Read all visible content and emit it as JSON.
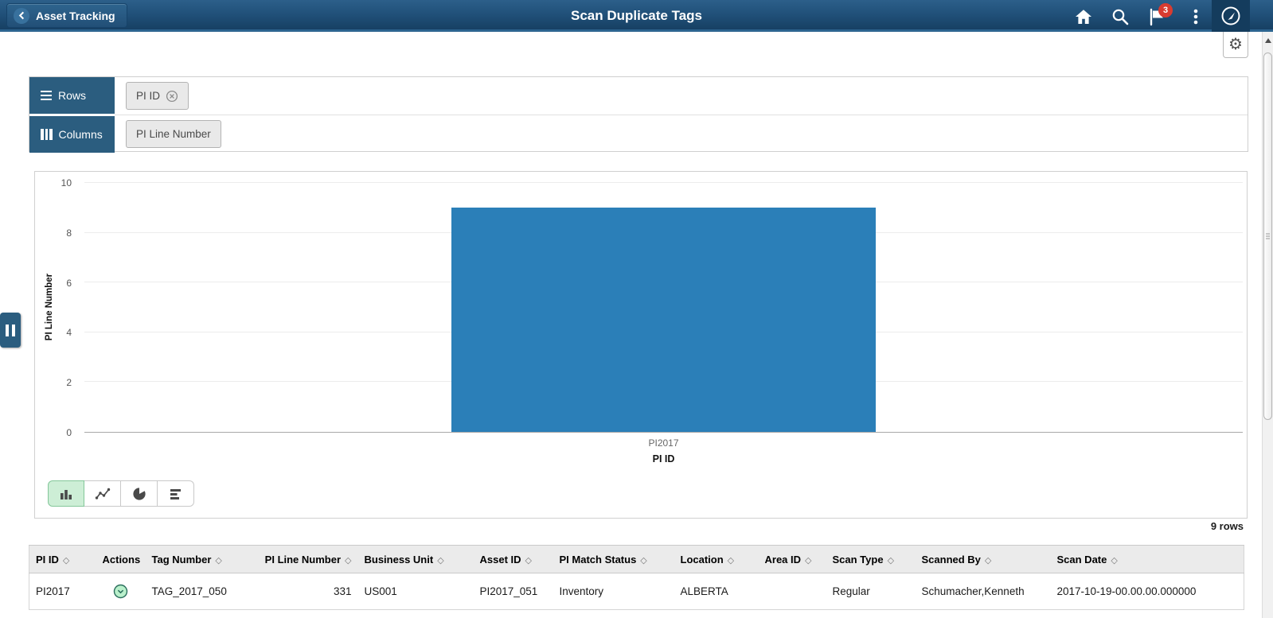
{
  "header": {
    "back_button_label": "Asset Tracking",
    "title": "Scan Duplicate Tags",
    "notification_badge": "3",
    "action_icons": [
      "home-icon",
      "search-icon",
      "notifications-flag-icon",
      "more-menu-icon",
      "navbar-compass-icon"
    ]
  },
  "toolbar": {
    "settings_icon": "⚙"
  },
  "pivot_panel": {
    "rows": {
      "label": "Rows",
      "chips": [
        {
          "label": "PI ID",
          "removable": true
        }
      ]
    },
    "columns": {
      "label": "Columns",
      "chips": [
        {
          "label": "PI Line Number",
          "removable": false
        }
      ]
    }
  },
  "chart_data": {
    "type": "bar",
    "title": "",
    "categories": [
      "PI2017"
    ],
    "values": [
      9
    ],
    "xlabel": "PI ID",
    "ylabel": "PI Line Number",
    "ylim": [
      0,
      10
    ],
    "yticks": [
      0,
      2,
      4,
      6,
      8,
      10
    ],
    "grid": true,
    "legend": "none",
    "bar_color": "#2b7fb8"
  },
  "chart_type_switcher": {
    "options": [
      "bar",
      "line",
      "pie",
      "hbar"
    ],
    "selected": "bar"
  },
  "grid_summary": {
    "row_count": "9 rows"
  },
  "table": {
    "columns": [
      {
        "label": "PI ID",
        "sortable": true
      },
      {
        "label": "Actions",
        "sortable": false,
        "align": "center"
      },
      {
        "label": "Tag Number",
        "sortable": true
      },
      {
        "label": "PI Line Number",
        "sortable": true,
        "align": "right"
      },
      {
        "label": "Business Unit",
        "sortable": true
      },
      {
        "label": "Asset ID",
        "sortable": true
      },
      {
        "label": "PI Match Status",
        "sortable": true
      },
      {
        "label": "Location",
        "sortable": true
      },
      {
        "label": "Area ID",
        "sortable": true
      },
      {
        "label": "Scan Type",
        "sortable": true
      },
      {
        "label": "Scanned By",
        "sortable": true
      },
      {
        "label": "Scan Date",
        "sortable": true
      }
    ],
    "rows": [
      {
        "cells": [
          "PI2017",
          "",
          "TAG_2017_050",
          "331",
          "US001",
          "PI2017_051",
          "Inventory",
          "ALBERTA",
          "",
          "Regular",
          "Schumacher,Kenneth",
          "2017-10-19-00.00.00.000000"
        ],
        "actions_icon": "row-actions-chevron-icon"
      }
    ]
  },
  "colors": {
    "header_bg": "#1f4e76",
    "tab_bg": "#2b5d7f",
    "bar": "#2b7fb8",
    "selected_chart_type_bg": "#cdeed6",
    "badge_bg": "#d93b30",
    "action_icon_fill": "#b9f0cb"
  },
  "sort_glyph": "◇"
}
